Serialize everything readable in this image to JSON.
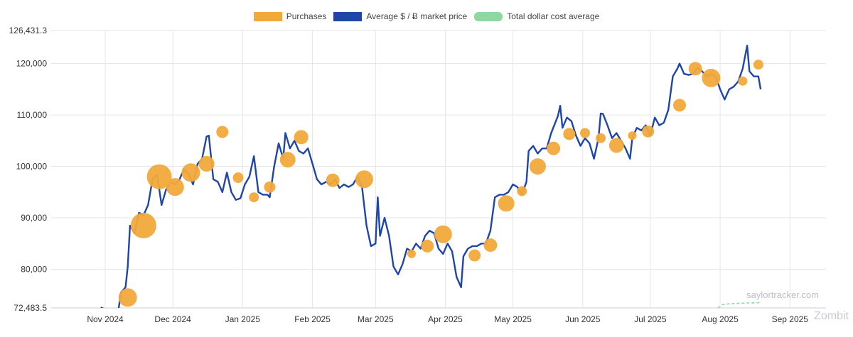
{
  "legend": {
    "purchases": "Purchases",
    "market_price": "Average $ / Ƀ market price",
    "cost_average": "Total dollar cost average"
  },
  "colors": {
    "purchases": "#f2a93b",
    "market_price": "#1f45a8",
    "cost_average": "#8fd6a0",
    "grid": "#e6e6e6"
  },
  "watermark": "saylortracker.com",
  "brand": "Zombit",
  "chart_data": {
    "type": "line",
    "ylim": [
      72483.5,
      126431.3
    ],
    "y_ticks": [
      {
        "value": 72483.5,
        "label": "72,483.5"
      },
      {
        "value": 80000,
        "label": "80,000"
      },
      {
        "value": 90000,
        "label": "90,000"
      },
      {
        "value": 100000,
        "label": "100,000"
      },
      {
        "value": 110000,
        "label": "110,000"
      },
      {
        "value": 120000,
        "label": "120,000"
      },
      {
        "value": 126431.3,
        "label": "126,431.3"
      }
    ],
    "xlim": [
      "2024-10-08",
      "2025-09-17"
    ],
    "x_ticks": [
      {
        "date": "2024-11-01",
        "label": "Nov 2024"
      },
      {
        "date": "2024-12-01",
        "label": "Dec 2024"
      },
      {
        "date": "2025-01-01",
        "label": "Jan 2025"
      },
      {
        "date": "2025-02-01",
        "label": "Feb 2025"
      },
      {
        "date": "2025-03-01",
        "label": "Mar 2025"
      },
      {
        "date": "2025-04-01",
        "label": "Apr 2025"
      },
      {
        "date": "2025-05-01",
        "label": "May 2025"
      },
      {
        "date": "2025-06-01",
        "label": "Jun 2025"
      },
      {
        "date": "2025-07-01",
        "label": "Jul 2025"
      },
      {
        "date": "2025-08-01",
        "label": "Aug 2025"
      },
      {
        "date": "2025-09-01",
        "label": "Sep 2025"
      }
    ],
    "grid": true,
    "legend_position": "top-center",
    "series": [
      {
        "name": "Average $ / Ƀ market price",
        "type": "line",
        "points": [
          [
            "2024-10-30",
            72600
          ],
          [
            "2024-11-02",
            72000
          ],
          [
            "2024-11-04",
            68800
          ],
          [
            "2024-11-06",
            69500
          ],
          [
            "2024-11-08",
            75500
          ],
          [
            "2024-11-10",
            76500
          ],
          [
            "2024-11-11",
            80500
          ],
          [
            "2024-11-12",
            88500
          ],
          [
            "2024-11-14",
            87000
          ],
          [
            "2024-11-16",
            91000
          ],
          [
            "2024-11-18",
            90500
          ],
          [
            "2024-11-20",
            92500
          ],
          [
            "2024-11-22",
            97500
          ],
          [
            "2024-11-24",
            98500
          ],
          [
            "2024-11-26",
            92500
          ],
          [
            "2024-11-28",
            95500
          ],
          [
            "2024-11-30",
            97000
          ],
          [
            "2024-12-02",
            96500
          ],
          [
            "2024-12-04",
            97500
          ],
          [
            "2024-12-06",
            99500
          ],
          [
            "2024-12-08",
            98500
          ],
          [
            "2024-12-10",
            96500
          ],
          [
            "2024-12-12",
            100500
          ],
          [
            "2024-12-14",
            101500
          ],
          [
            "2024-12-16",
            105800
          ],
          [
            "2024-12-17",
            106000
          ],
          [
            "2024-12-19",
            97500
          ],
          [
            "2024-12-21",
            97000
          ],
          [
            "2024-12-23",
            95000
          ],
          [
            "2024-12-25",
            98800
          ],
          [
            "2024-12-27",
            95000
          ],
          [
            "2024-12-29",
            93500
          ],
          [
            "2024-12-31",
            93800
          ],
          [
            "2025-01-02",
            96500
          ],
          [
            "2025-01-04",
            98000
          ],
          [
            "2025-01-06",
            102000
          ],
          [
            "2025-01-08",
            95000
          ],
          [
            "2025-01-10",
            94500
          ],
          [
            "2025-01-12",
            94500
          ],
          [
            "2025-01-13",
            94000
          ],
          [
            "2025-01-15",
            100000
          ],
          [
            "2025-01-17",
            104500
          ],
          [
            "2025-01-19",
            101500
          ],
          [
            "2025-01-20",
            106500
          ],
          [
            "2025-01-22",
            103500
          ],
          [
            "2025-01-24",
            105000
          ],
          [
            "2025-01-26",
            103000
          ],
          [
            "2025-01-28",
            102500
          ],
          [
            "2025-01-30",
            103500
          ],
          [
            "2025-02-01",
            100500
          ],
          [
            "2025-02-03",
            97500
          ],
          [
            "2025-02-05",
            96500
          ],
          [
            "2025-02-07",
            97000
          ],
          [
            "2025-02-09",
            96500
          ],
          [
            "2025-02-11",
            97500
          ],
          [
            "2025-02-13",
            95800
          ],
          [
            "2025-02-15",
            96500
          ],
          [
            "2025-02-17",
            96000
          ],
          [
            "2025-02-19",
            96500
          ],
          [
            "2025-02-21",
            98000
          ],
          [
            "2025-02-23",
            96000
          ],
          [
            "2025-02-25",
            88500
          ],
          [
            "2025-02-27",
            84500
          ],
          [
            "2025-03-01",
            85000
          ],
          [
            "2025-03-02",
            94000
          ],
          [
            "2025-03-03",
            86500
          ],
          [
            "2025-03-05",
            90000
          ],
          [
            "2025-03-07",
            86500
          ],
          [
            "2025-03-09",
            80500
          ],
          [
            "2025-03-11",
            79000
          ],
          [
            "2025-03-13",
            81000
          ],
          [
            "2025-03-15",
            84000
          ],
          [
            "2025-03-17",
            83500
          ],
          [
            "2025-03-19",
            85000
          ],
          [
            "2025-03-21",
            84000
          ],
          [
            "2025-03-23",
            86500
          ],
          [
            "2025-03-25",
            87500
          ],
          [
            "2025-03-27",
            87000
          ],
          [
            "2025-03-29",
            84000
          ],
          [
            "2025-03-31",
            83000
          ],
          [
            "2025-04-02",
            85000
          ],
          [
            "2025-04-04",
            83500
          ],
          [
            "2025-04-06",
            78500
          ],
          [
            "2025-04-08",
            76500
          ],
          [
            "2025-04-09",
            82500
          ],
          [
            "2025-04-11",
            84000
          ],
          [
            "2025-04-13",
            84500
          ],
          [
            "2025-04-15",
            84500
          ],
          [
            "2025-04-17",
            85000
          ],
          [
            "2025-04-19",
            85000
          ],
          [
            "2025-04-21",
            87500
          ],
          [
            "2025-04-23",
            94000
          ],
          [
            "2025-04-25",
            94500
          ],
          [
            "2025-04-27",
            94500
          ],
          [
            "2025-04-29",
            95000
          ],
          [
            "2025-05-01",
            96500
          ],
          [
            "2025-05-03",
            96000
          ],
          [
            "2025-05-05",
            94500
          ],
          [
            "2025-05-07",
            97000
          ],
          [
            "2025-05-08",
            103000
          ],
          [
            "2025-05-10",
            104000
          ],
          [
            "2025-05-12",
            102500
          ],
          [
            "2025-05-14",
            103500
          ],
          [
            "2025-05-16",
            103500
          ],
          [
            "2025-05-18",
            106500
          ],
          [
            "2025-05-21",
            109800
          ],
          [
            "2025-05-22",
            111800
          ],
          [
            "2025-05-23",
            107500
          ],
          [
            "2025-05-25",
            109500
          ],
          [
            "2025-05-27",
            108800
          ],
          [
            "2025-05-29",
            106000
          ],
          [
            "2025-05-31",
            104000
          ],
          [
            "2025-06-02",
            105500
          ],
          [
            "2025-06-04",
            104500
          ],
          [
            "2025-06-06",
            101500
          ],
          [
            "2025-06-08",
            105500
          ],
          [
            "2025-06-09",
            110300
          ],
          [
            "2025-06-10",
            110200
          ],
          [
            "2025-06-12",
            108000
          ],
          [
            "2025-06-14",
            105500
          ],
          [
            "2025-06-16",
            106500
          ],
          [
            "2025-06-18",
            105000
          ],
          [
            "2025-06-20",
            103500
          ],
          [
            "2025-06-22",
            101500
          ],
          [
            "2025-06-23",
            105500
          ],
          [
            "2025-06-25",
            107500
          ],
          [
            "2025-06-27",
            107000
          ],
          [
            "2025-06-29",
            108000
          ],
          [
            "2025-07-01",
            106000
          ],
          [
            "2025-07-03",
            109500
          ],
          [
            "2025-07-05",
            108000
          ],
          [
            "2025-07-07",
            108500
          ],
          [
            "2025-07-09",
            111000
          ],
          [
            "2025-07-11",
            117500
          ],
          [
            "2025-07-13",
            119000
          ],
          [
            "2025-07-14",
            120000
          ],
          [
            "2025-07-16",
            118000
          ],
          [
            "2025-07-18",
            117800
          ],
          [
            "2025-07-20",
            118000
          ],
          [
            "2025-07-22",
            119200
          ],
          [
            "2025-07-24",
            118500
          ],
          [
            "2025-07-26",
            117500
          ],
          [
            "2025-07-28",
            118000
          ],
          [
            "2025-07-30",
            117500
          ],
          [
            "2025-08-01",
            115000
          ],
          [
            "2025-08-03",
            113000
          ],
          [
            "2025-08-05",
            115000
          ],
          [
            "2025-08-07",
            115500
          ],
          [
            "2025-08-09",
            116500
          ],
          [
            "2025-08-11",
            119000
          ],
          [
            "2025-08-13",
            123500
          ],
          [
            "2025-08-14",
            118500
          ],
          [
            "2025-08-16",
            117500
          ],
          [
            "2025-08-18",
            117500
          ],
          [
            "2025-08-19",
            115000
          ]
        ]
      },
      {
        "name": "Purchases",
        "type": "scatter",
        "points": [
          {
            "date": "2024-11-11",
            "value": 74500,
            "size": 1.3
          },
          {
            "date": "2024-11-18",
            "value": 88500,
            "size": 1.8
          },
          {
            "date": "2024-11-25",
            "value": 98000,
            "size": 1.75
          },
          {
            "date": "2024-12-02",
            "value": 96000,
            "size": 1.25
          },
          {
            "date": "2024-12-09",
            "value": 98800,
            "size": 1.3
          },
          {
            "date": "2024-12-16",
            "value": 100500,
            "size": 1.1
          },
          {
            "date": "2024-12-23",
            "value": 106700,
            "size": 0.85
          },
          {
            "date": "2024-12-30",
            "value": 97800,
            "size": 0.75
          },
          {
            "date": "2025-01-06",
            "value": 94000,
            "size": 0.7
          },
          {
            "date": "2025-01-13",
            "value": 96000,
            "size": 0.8
          },
          {
            "date": "2025-01-21",
            "value": 101300,
            "size": 1.1
          },
          {
            "date": "2025-01-27",
            "value": 105700,
            "size": 1.0
          },
          {
            "date": "2025-02-10",
            "value": 97300,
            "size": 0.95
          },
          {
            "date": "2025-02-24",
            "value": 97500,
            "size": 1.25
          },
          {
            "date": "2025-03-17",
            "value": 83000,
            "size": 0.6
          },
          {
            "date": "2025-03-24",
            "value": 84500,
            "size": 0.9
          },
          {
            "date": "2025-03-31",
            "value": 86800,
            "size": 1.25
          },
          {
            "date": "2025-04-14",
            "value": 82700,
            "size": 0.85
          },
          {
            "date": "2025-04-21",
            "value": 84700,
            "size": 0.95
          },
          {
            "date": "2025-04-28",
            "value": 92800,
            "size": 1.15
          },
          {
            "date": "2025-05-05",
            "value": 95200,
            "size": 0.7
          },
          {
            "date": "2025-05-12",
            "value": 100000,
            "size": 1.15
          },
          {
            "date": "2025-05-19",
            "value": 103500,
            "size": 0.95
          },
          {
            "date": "2025-05-26",
            "value": 106300,
            "size": 0.85
          },
          {
            "date": "2025-06-02",
            "value": 106500,
            "size": 0.7
          },
          {
            "date": "2025-06-09",
            "value": 105500,
            "size": 0.7
          },
          {
            "date": "2025-06-16",
            "value": 104100,
            "size": 1.05
          },
          {
            "date": "2025-06-23",
            "value": 106000,
            "size": 0.6
          },
          {
            "date": "2025-06-30",
            "value": 106800,
            "size": 0.85
          },
          {
            "date": "2025-07-14",
            "value": 111900,
            "size": 0.9
          },
          {
            "date": "2025-07-21",
            "value": 119000,
            "size": 0.95
          },
          {
            "date": "2025-07-28",
            "value": 117200,
            "size": 1.3
          },
          {
            "date": "2025-08-11",
            "value": 116600,
            "size": 0.65
          },
          {
            "date": "2025-08-18",
            "value": 119800,
            "size": 0.7
          }
        ]
      },
      {
        "name": "Total dollar cost average",
        "type": "line",
        "style": "dashed",
        "points": [
          [
            "2025-07-31",
            72483.5
          ],
          [
            "2025-08-02",
            73100
          ],
          [
            "2025-08-05",
            73300
          ],
          [
            "2025-08-10",
            73400
          ],
          [
            "2025-08-19",
            73500
          ]
        ]
      }
    ]
  }
}
